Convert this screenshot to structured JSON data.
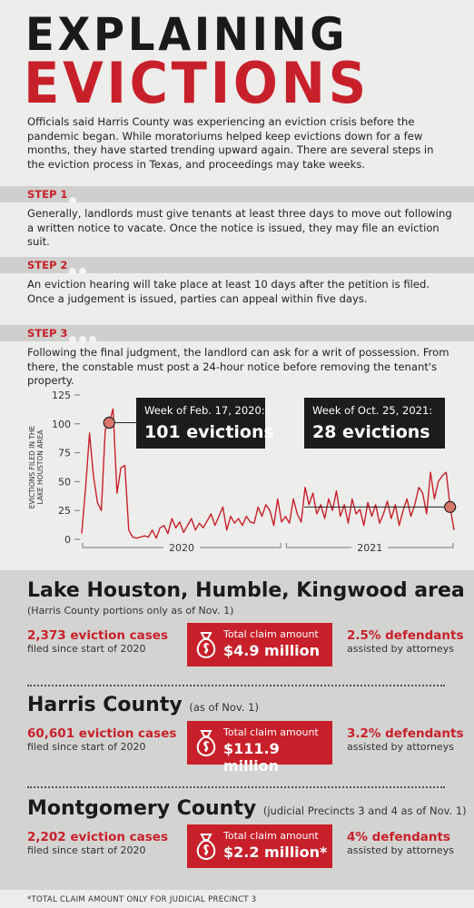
{
  "header": {
    "title_line1": "EXPLAINING",
    "title_line2": "EVICTIONS",
    "intro": "Officials said Harris County was experiencing an eviction crisis before the pandemic began. While moratoriums helped keep evictions down for a few months, they have started trending upward again. There are several steps in the eviction process in Texas, and proceedings may take weeks."
  },
  "steps": [
    {
      "label": "STEP 1",
      "text": "Generally, landlords must give tenants at least three days to move out following a written notice to vacate. Once the notice is issued, they may file an eviction suit."
    },
    {
      "label": "STEP 2",
      "text": "An eviction hearing will take place at least 10 days after the petition is filed. Once a judgement is issued, parties can appeal within five days."
    },
    {
      "label": "STEP 3",
      "text": "Following the final judgment, the landlord can ask for a writ of possession. From there, the constable must post a 24-hour notice before removing the tenant's property."
    }
  ],
  "chart_data": {
    "type": "line",
    "ylabel": "EVICTIONS FILED IN THE LAKE HOUSTON AREA",
    "color": "#c8202a",
    "categories": [
      "2020",
      "2020",
      "2020",
      "2020",
      "2020",
      "2020",
      "2020",
      "2020",
      "2020",
      "2020",
      "2020",
      "2020",
      "2020",
      "2020",
      "2020",
      "2020",
      "2020",
      "2020",
      "2020",
      "2020",
      "2020",
      "2020",
      "2020",
      "2020",
      "2020",
      "2020",
      "2020",
      "2020",
      "2020",
      "2020",
      "2020",
      "2020",
      "2020",
      "2020",
      "2020",
      "2020",
      "2020",
      "2020",
      "2020",
      "2020",
      "2020",
      "2020",
      "2020",
      "2020",
      "2020",
      "2020",
      "2020",
      "2020",
      "2020",
      "2020",
      "2020",
      "2020",
      "2021",
      "2021",
      "2021",
      "2021",
      "2021",
      "2021",
      "2021",
      "2021",
      "2021",
      "2021",
      "2021",
      "2021",
      "2021",
      "2021",
      "2021",
      "2021",
      "2021",
      "2021",
      "2021",
      "2021",
      "2021",
      "2021",
      "2021",
      "2021",
      "2021",
      "2021",
      "2021",
      "2021",
      "2021",
      "2021",
      "2021",
      "2021",
      "2021",
      "2021",
      "2021",
      "2021",
      "2021",
      "2021",
      "2021",
      "2021",
      "2021",
      "2021",
      "2021",
      "2021"
    ],
    "values": [
      5,
      45,
      92,
      55,
      32,
      25,
      95,
      101,
      113,
      40,
      62,
      64,
      8,
      2,
      1,
      2,
      3,
      2,
      8,
      1,
      10,
      12,
      5,
      18,
      10,
      15,
      6,
      12,
      18,
      8,
      14,
      10,
      16,
      22,
      12,
      20,
      28,
      8,
      20,
      14,
      18,
      12,
      20,
      15,
      14,
      28,
      20,
      30,
      25,
      12,
      35,
      15,
      20,
      14,
      35,
      22,
      15,
      45,
      30,
      40,
      22,
      30,
      18,
      35,
      25,
      42,
      20,
      30,
      14,
      35,
      22,
      26,
      12,
      32,
      20,
      30,
      14,
      22,
      33,
      18,
      30,
      12,
      25,
      35,
      20,
      30,
      45,
      40,
      22,
      58,
      35,
      50,
      55,
      58,
      28,
      8
    ],
    "ylim": [
      0,
      125
    ],
    "yticks": [
      0,
      25,
      50,
      75,
      100,
      125
    ],
    "annotations": [
      {
        "heading": "Week of Feb. 17, 2020:",
        "label": "101 evictions",
        "value": 101
      },
      {
        "heading": "Week of Oct. 25, 2021:",
        "label": "28 evictions",
        "value": 28
      }
    ]
  },
  "areas": [
    {
      "title": "Lake Houston, Humble, Kingwood area",
      "subtitle": "(Harris County portions only as of Nov. 1)",
      "cases": "2,373 eviction cases",
      "cases_note": "filed since start of 2020",
      "claim_label": "Total claim amount",
      "claim": "$4.9 million",
      "defendants": "2.5% defendants",
      "defendants_note": "assisted by attorneys"
    },
    {
      "title": "Harris County",
      "subtitle": "(as of Nov. 1)",
      "cases": "60,601 eviction cases",
      "cases_note": "filed since start of 2020",
      "claim_label": "Total claim amount",
      "claim": "$111.9 million",
      "defendants": "3.2% defendants",
      "defendants_note": "assisted by attorneys"
    },
    {
      "title": "Montgomery County",
      "subtitle": "(judicial Precincts 3 and 4 as of Nov. 1)",
      "cases": "2,202 eviction cases",
      "cases_note": "filed since start of 2020",
      "claim_label": "Total claim amount",
      "claim": "$2.2 million*",
      "defendants": "4% defendants",
      "defendants_note": "assisted by attorneys"
    }
  ],
  "footnote": "*TOTAL CLAIM AMOUNT ONLY FOR JUDICIAL PRECINCT 3"
}
